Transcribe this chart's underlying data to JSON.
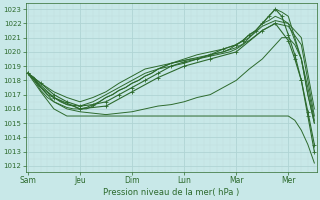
{
  "background_color": "#c8e8e8",
  "grid_major_color": "#b0d4d4",
  "grid_minor_color": "#c0dcdc",
  "line_color": "#2d6a2d",
  "xlabel": "Pression niveau de la mer( hPa )",
  "yticks": [
    1012,
    1013,
    1014,
    1015,
    1016,
    1017,
    1018,
    1019,
    1020,
    1021,
    1022,
    1023
  ],
  "xtick_labels": [
    "Sam",
    "Jeu",
    "Dim",
    "Lun",
    "Mar",
    "Mer"
  ],
  "xtick_positions": [
    0,
    24,
    48,
    72,
    96,
    120
  ],
  "ylim": [
    1011.6,
    1023.4
  ],
  "xlim": [
    -1,
    133
  ],
  "lines": [
    {
      "x": [
        0,
        3,
        6,
        9,
        12,
        15,
        18,
        21,
        24,
        27,
        30,
        33,
        36,
        39,
        42,
        45,
        48,
        51,
        54,
        57,
        60,
        63,
        66,
        69,
        72,
        75,
        78,
        81,
        84,
        87,
        90,
        93,
        96,
        99,
        102,
        105,
        108,
        111,
        114,
        117,
        120,
        123,
        126,
        129,
        132
      ],
      "y": [
        1018.5,
        1018.2,
        1017.5,
        1017.0,
        1016.8,
        1016.5,
        1016.3,
        1016.2,
        1016.0,
        1016.0,
        1016.2,
        1016.5,
        1016.8,
        1017.0,
        1017.3,
        1017.5,
        1017.8,
        1018.0,
        1018.3,
        1018.5,
        1018.8,
        1019.0,
        1019.2,
        1019.3,
        1019.4,
        1019.5,
        1019.5,
        1019.6,
        1019.7,
        1019.8,
        1019.9,
        1020.0,
        1020.2,
        1020.5,
        1021.0,
        1021.5,
        1022.0,
        1022.5,
        1023.0,
        1022.8,
        1022.5,
        1021.0,
        1019.5,
        1017.5,
        1015.2
      ]
    },
    {
      "x": [
        0,
        3,
        6,
        9,
        12,
        15,
        18,
        21,
        24,
        27,
        30,
        33,
        36,
        39,
        42,
        45,
        48,
        51,
        54,
        57,
        60,
        63,
        66,
        69,
        72,
        75,
        78,
        81,
        84,
        87,
        90,
        93,
        96,
        99,
        102,
        105,
        108,
        111,
        114,
        117,
        120,
        123,
        126,
        129,
        132
      ],
      "y": [
        1018.5,
        1018.0,
        1017.3,
        1016.8,
        1016.5,
        1016.3,
        1016.1,
        1016.0,
        1016.0,
        1016.1,
        1016.3,
        1016.5,
        1016.8,
        1017.0,
        1017.3,
        1017.5,
        1017.8,
        1018.0,
        1018.3,
        1018.5,
        1018.8,
        1019.0,
        1019.2,
        1019.3,
        1019.4,
        1019.5,
        1019.6,
        1019.7,
        1019.8,
        1019.9,
        1020.0,
        1020.2,
        1020.5,
        1020.8,
        1021.2,
        1021.5,
        1022.0,
        1022.2,
        1022.5,
        1022.3,
        1022.0,
        1020.8,
        1019.5,
        1017.0,
        1015.0
      ]
    },
    {
      "x": [
        0,
        6,
        12,
        18,
        24,
        30,
        36,
        42,
        48,
        54,
        60,
        66,
        72,
        78,
        84,
        90,
        96,
        102,
        108,
        114,
        120,
        126,
        132
      ],
      "y": [
        1018.5,
        1017.5,
        1016.8,
        1016.3,
        1016.2,
        1016.5,
        1017.0,
        1017.5,
        1018.0,
        1018.5,
        1018.8,
        1019.0,
        1019.2,
        1019.5,
        1019.8,
        1020.0,
        1020.3,
        1020.8,
        1021.5,
        1022.0,
        1021.8,
        1020.5,
        1015.5
      ]
    },
    {
      "x": [
        0,
        6,
        12,
        18,
        24,
        30,
        36,
        42,
        48,
        54,
        60,
        66,
        72,
        78,
        84,
        90,
        96,
        102,
        108,
        114,
        120,
        126,
        132
      ],
      "y": [
        1018.5,
        1017.8,
        1017.2,
        1016.8,
        1016.5,
        1016.8,
        1017.2,
        1017.8,
        1018.3,
        1018.8,
        1019.0,
        1019.2,
        1019.5,
        1019.8,
        1020.0,
        1020.2,
        1020.5,
        1021.0,
        1021.8,
        1022.2,
        1022.0,
        1021.0,
        1016.0
      ]
    },
    {
      "x": [
        0,
        6,
        12,
        18,
        24,
        30,
        36,
        42,
        48,
        54,
        60,
        66,
        72,
        78,
        84,
        90,
        96,
        102,
        108,
        114,
        117,
        120,
        123,
        126,
        129,
        132
      ],
      "y": [
        1018.5,
        1017.5,
        1016.5,
        1016.0,
        1015.8,
        1015.7,
        1015.6,
        1015.7,
        1015.8,
        1016.0,
        1016.2,
        1016.3,
        1016.5,
        1016.8,
        1017.0,
        1017.5,
        1018.0,
        1018.8,
        1019.5,
        1020.5,
        1021.0,
        1021.0,
        1020.5,
        1019.5,
        1017.0,
        1015.0
      ]
    },
    {
      "x": [
        0,
        6,
        12,
        18,
        24,
        30,
        36,
        42,
        48,
        60,
        72,
        84,
        96,
        108,
        114,
        120,
        123,
        126,
        129,
        132
      ],
      "y": [
        1018.5,
        1017.2,
        1016.0,
        1015.5,
        1015.5,
        1015.5,
        1015.5,
        1015.5,
        1015.5,
        1015.5,
        1015.5,
        1015.5,
        1015.5,
        1015.5,
        1015.5,
        1015.5,
        1015.2,
        1014.5,
        1013.5,
        1012.2
      ]
    },
    {
      "x": [
        0,
        6,
        12,
        18,
        24,
        30,
        36,
        42,
        48,
        54,
        60,
        66,
        72,
        78,
        84,
        90,
        96,
        99,
        102,
        105,
        108,
        111,
        114,
        117,
        120,
        123,
        126,
        129,
        132
      ],
      "y": [
        1018.5,
        1017.8,
        1017.0,
        1016.5,
        1016.2,
        1016.3,
        1016.5,
        1017.0,
        1017.5,
        1018.0,
        1018.5,
        1019.0,
        1019.3,
        1019.5,
        1019.8,
        1020.2,
        1020.5,
        1020.8,
        1021.2,
        1021.5,
        1022.0,
        1022.5,
        1023.0,
        1022.5,
        1021.2,
        1019.8,
        1018.0,
        1015.5,
        1013.0
      ],
      "marker": true
    },
    {
      "x": [
        0,
        12,
        24,
        36,
        48,
        60,
        72,
        84,
        96,
        108,
        114,
        120,
        123,
        126,
        129,
        132
      ],
      "y": [
        1018.5,
        1016.8,
        1016.0,
        1016.2,
        1017.2,
        1018.2,
        1019.0,
        1019.5,
        1020.0,
        1021.5,
        1022.0,
        1020.8,
        1019.5,
        1018.0,
        1015.8,
        1013.5
      ],
      "marker": true
    }
  ]
}
